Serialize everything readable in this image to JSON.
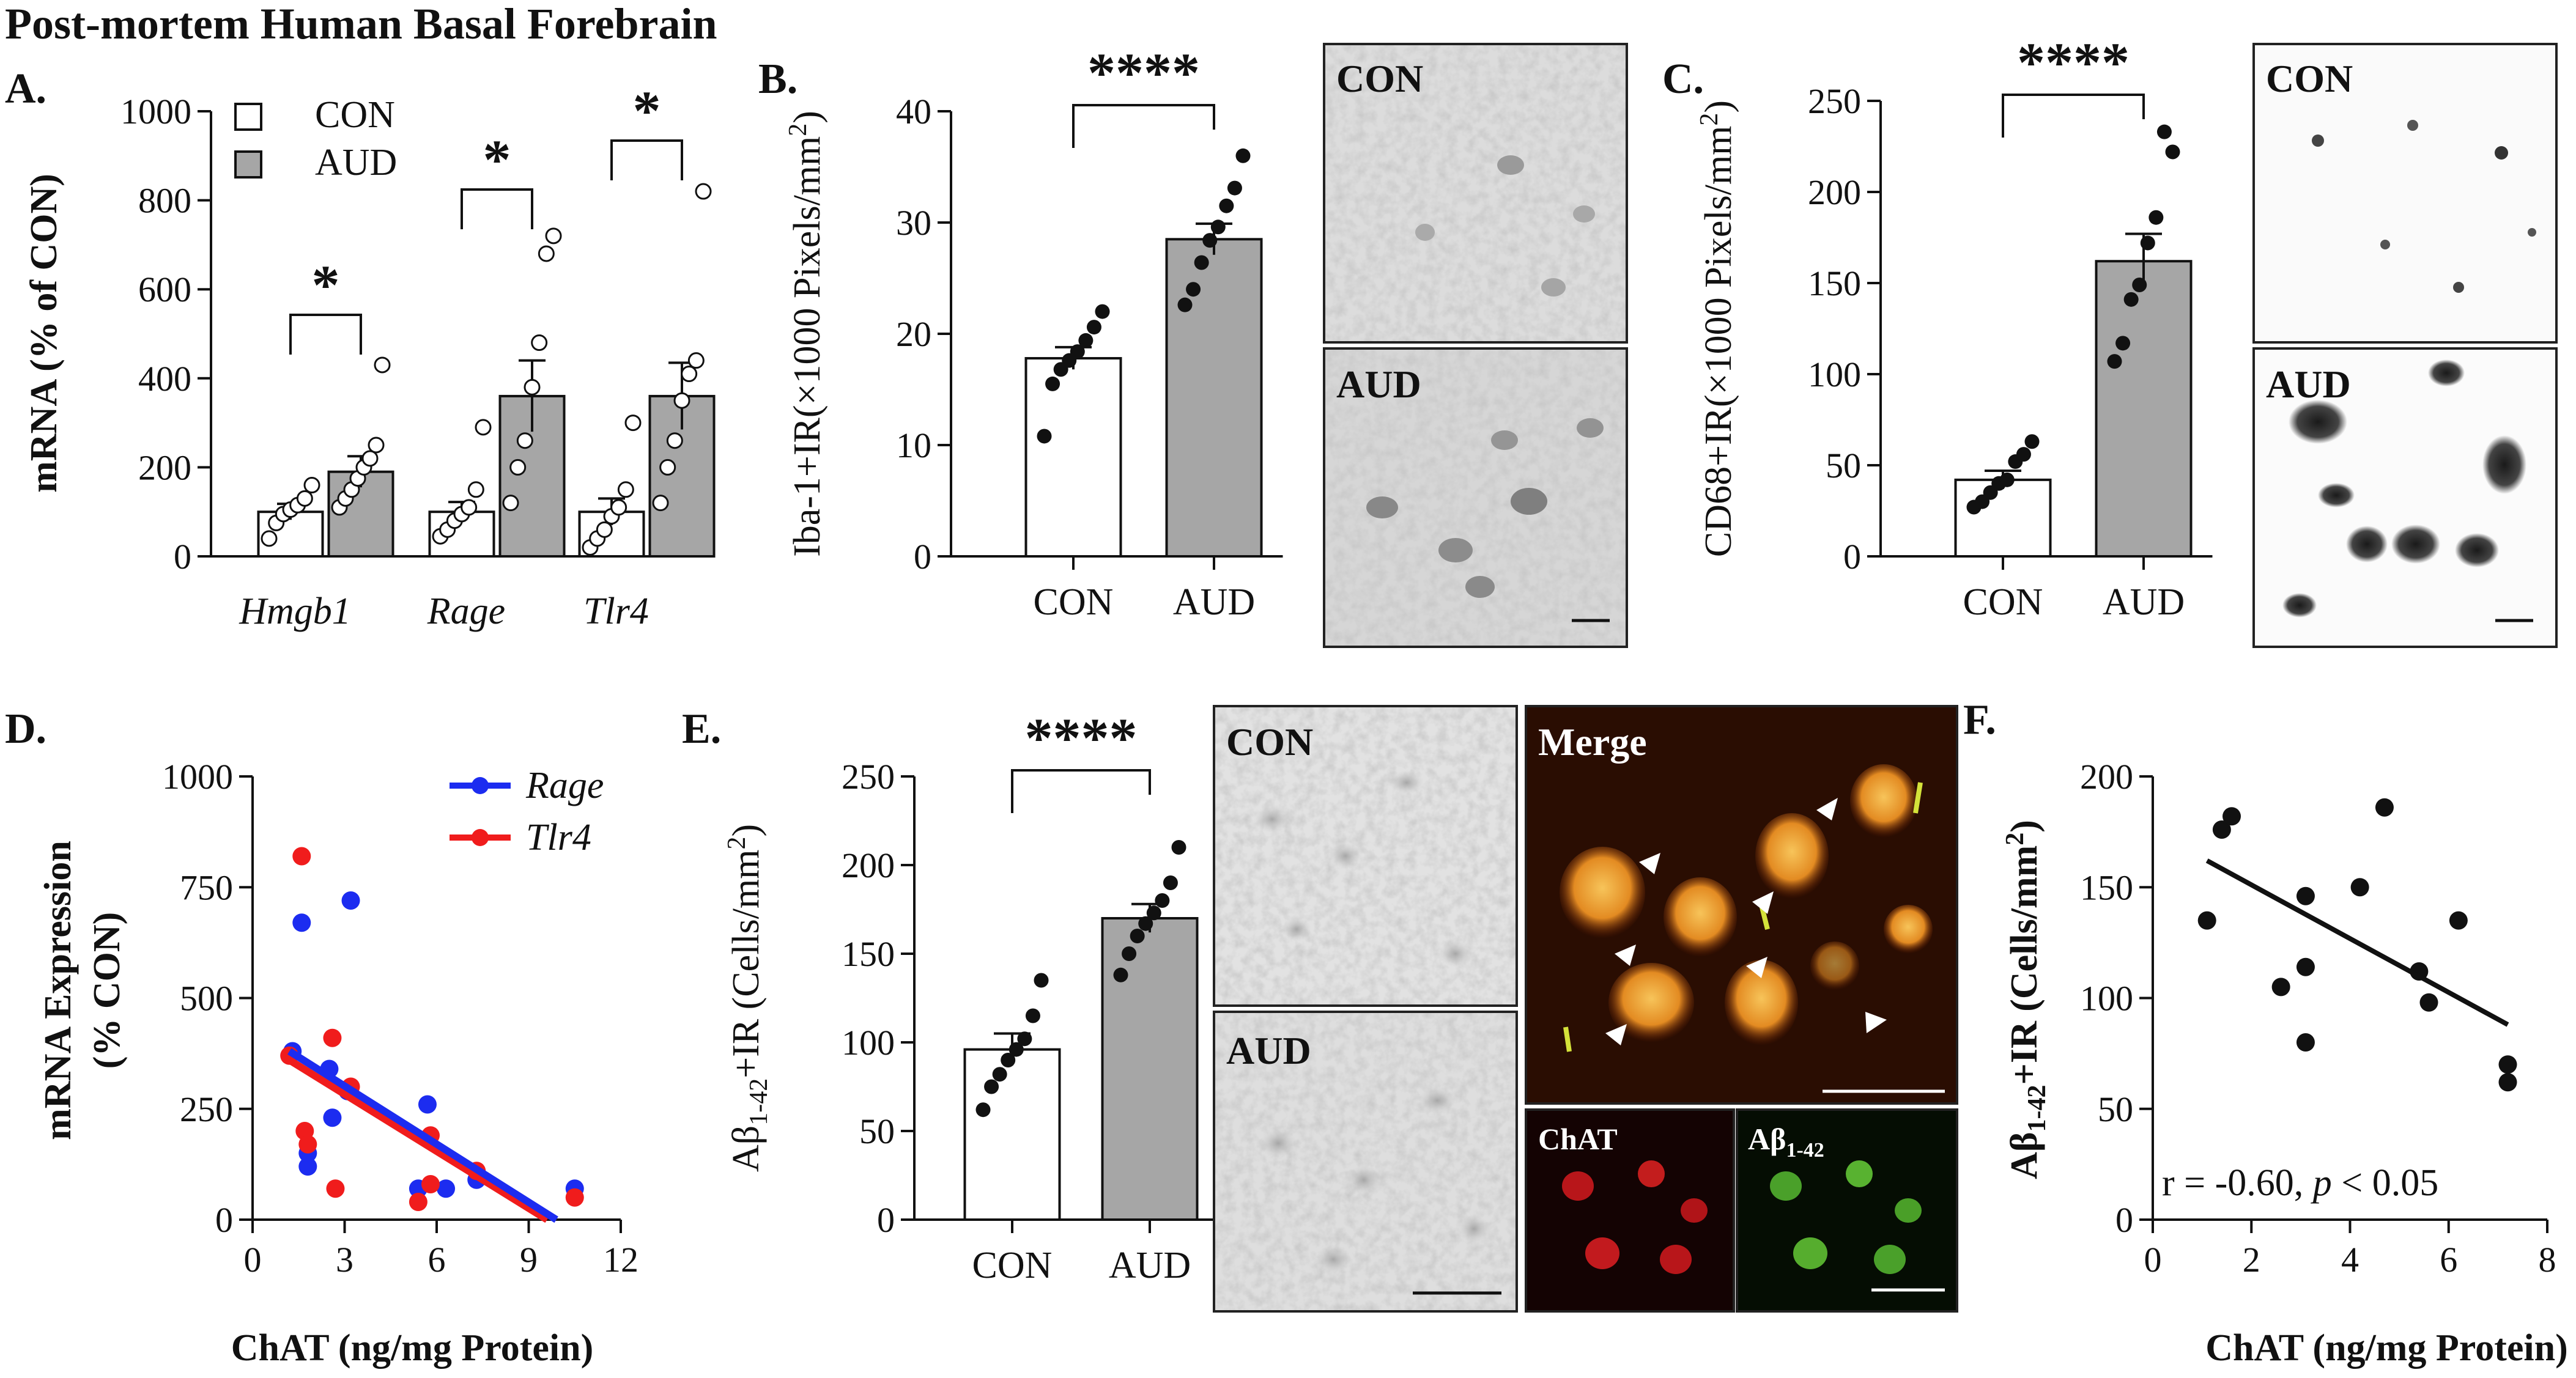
{
  "figure_title": "Post-mortem Human Basal Forebrain",
  "colors": {
    "con_bar": "#ffffff",
    "aud_bar": "#a6a6a6",
    "rage": "#1c2cf0",
    "tlr4": "#f01c1c"
  },
  "panels": {
    "A": {
      "label": "A.",
      "sig": [
        "*",
        "*",
        "*"
      ]
    },
    "B": {
      "label": "B.",
      "sig": "****",
      "img_con": "CON",
      "img_aud": "AUD"
    },
    "C": {
      "label": "C.",
      "sig": "****",
      "img_con": "CON",
      "img_aud": "AUD"
    },
    "D": {
      "label": "D."
    },
    "E": {
      "label": "E.",
      "sig": "****",
      "img_con": "CON",
      "img_aud": "AUD",
      "img_merge": "Merge",
      "img_chat": "ChAT",
      "img_abeta": "Aβ",
      "img_abeta_sub": "1-42"
    },
    "F": {
      "label": "F.",
      "stat_prefix": "r = -0.60, ",
      "stat_p": "p",
      "stat_suffix": " < 0.05"
    }
  },
  "chart_data": [
    {
      "id": "A",
      "type": "bar",
      "categories": [
        "Hmgb1",
        "Rage",
        "Tlr4"
      ],
      "ylabel": "mRNA (% of CON)",
      "ylim": [
        0,
        1000
      ],
      "yticks": [
        "0",
        "200",
        "400",
        "600",
        "800",
        "1000"
      ],
      "legend": [
        "CON",
        "AUD"
      ],
      "legend_position": "top-left",
      "series": [
        {
          "name": "CON",
          "values": [
            100,
            100,
            100
          ],
          "sem": [
            18,
            22,
            30
          ],
          "points": [
            [
              40,
              75,
              95,
              105,
              115,
              130,
              160
            ],
            [
              45,
              60,
              80,
              95,
              110,
              150,
              290
            ],
            [
              20,
              40,
              60,
              90,
              110,
              150,
              300
            ]
          ]
        },
        {
          "name": "AUD",
          "values": [
            190,
            360,
            360
          ],
          "sem": [
            35,
            80,
            75
          ],
          "points": [
            [
              110,
              130,
              150,
              175,
              200,
              220,
              250,
              430
            ],
            [
              120,
              200,
              260,
              380,
              480,
              680,
              720
            ],
            [
              120,
              200,
              260,
              350,
              410,
              440,
              820
            ]
          ]
        }
      ]
    },
    {
      "id": "B",
      "type": "bar",
      "categories": [
        "CON",
        "AUD"
      ],
      "ylabel": [
        "Iba-1+IR",
        "(×1000 Pixels/mm",
        "2",
        ")"
      ],
      "ylim": [
        0,
        40
      ],
      "yticks": [
        "0",
        "10",
        "20",
        "30",
        "40"
      ],
      "values": [
        17.8,
        28.5
      ],
      "sem": [
        1.0,
        1.4
      ],
      "points": [
        [
          10.8,
          15.5,
          16.8,
          17.6,
          18.4,
          19.4,
          20.6,
          22.0
        ],
        [
          22.6,
          24.0,
          26.4,
          28.4,
          29.6,
          31.5,
          33.1,
          36.0
        ]
      ]
    },
    {
      "id": "C",
      "type": "bar",
      "categories": [
        "CON",
        "AUD"
      ],
      "ylabel": [
        "CD68+IR",
        "(×1000 Pixels/mm",
        "2",
        ")"
      ],
      "ylim": [
        0,
        250
      ],
      "yticks": [
        "0",
        "50",
        "100",
        "150",
        "200",
        "250"
      ],
      "values": [
        42,
        162
      ],
      "sem": [
        5,
        15
      ],
      "points": [
        [
          27,
          30,
          35,
          40,
          42,
          52,
          56,
          63
        ],
        [
          107,
          117,
          141,
          149,
          172,
          186,
          233,
          222
        ]
      ]
    },
    {
      "id": "D",
      "type": "scatter",
      "xlabel": "ChAT (ng/mg Protein)",
      "ylabel": [
        "mRNA Expression",
        "(% CON)"
      ],
      "xlim": [
        0,
        12
      ],
      "ylim": [
        0,
        1000
      ],
      "xticks": [
        "0",
        "3",
        "6",
        "9",
        "12"
      ],
      "yticks": [
        "0",
        "250",
        "500",
        "750",
        "1000"
      ],
      "legend_position": "top-right",
      "series": [
        {
          "name": "Rage",
          "points": [
            [
              1.3,
              380
            ],
            [
              1.6,
              670
            ],
            [
              1.8,
              120
            ],
            [
              1.8,
              150
            ],
            [
              2.5,
              340
            ],
            [
              2.6,
              230
            ],
            [
              3.2,
              720
            ],
            [
              3.1,
              290
            ],
            [
              5.4,
              70
            ],
            [
              5.7,
              260
            ],
            [
              6.3,
              70
            ],
            [
              7.3,
              90
            ],
            [
              10.5,
              70
            ]
          ],
          "fit": [
            [
              1.2,
              380
            ],
            [
              9.9,
              0
            ]
          ]
        },
        {
          "name": "Tlr4",
          "points": [
            [
              1.2,
              370
            ],
            [
              1.6,
              820
            ],
            [
              1.7,
              200
            ],
            [
              1.8,
              170
            ],
            [
              2.6,
              410
            ],
            [
              2.7,
              70
            ],
            [
              3.2,
              300
            ],
            [
              5.4,
              40
            ],
            [
              5.8,
              190
            ],
            [
              5.8,
              80
            ],
            [
              7.3,
              110
            ],
            [
              10.5,
              50
            ]
          ],
          "fit": [
            [
              1.2,
              360
            ],
            [
              9.6,
              0
            ]
          ]
        }
      ]
    },
    {
      "id": "E",
      "type": "bar",
      "categories": [
        "CON",
        "AUD"
      ],
      "ylabel": [
        "Aβ",
        "1-42",
        "+IR (Cells/mm",
        "2",
        ")"
      ],
      "ylim": [
        0,
        250
      ],
      "yticks": [
        "0",
        "50",
        "100",
        "150",
        "200",
        "250"
      ],
      "values": [
        96,
        170
      ],
      "sem": [
        9,
        8
      ],
      "points": [
        [
          62,
          75,
          82,
          90,
          96,
          102,
          115,
          135
        ],
        [
          138,
          150,
          160,
          167,
          173,
          180,
          190,
          210
        ]
      ]
    },
    {
      "id": "F",
      "type": "scatter",
      "xlabel": "ChAT (ng/mg Protein)",
      "ylabel": [
        "Aβ",
        "1-42",
        "+IR (Cells/mm",
        "2",
        ")"
      ],
      "xlim": [
        0,
        8
      ],
      "ylim": [
        0,
        200
      ],
      "xticks": [
        "0",
        "2",
        "4",
        "6",
        "8"
      ],
      "yticks": [
        "0",
        "50",
        "100",
        "150",
        "200"
      ],
      "points": [
        [
          1.1,
          135
        ],
        [
          1.4,
          176
        ],
        [
          1.6,
          182
        ],
        [
          2.6,
          105
        ],
        [
          3.1,
          146
        ],
        [
          3.1,
          114
        ],
        [
          3.1,
          80
        ],
        [
          4.2,
          150
        ],
        [
          4.7,
          186
        ],
        [
          5.4,
          112
        ],
        [
          5.6,
          98
        ],
        [
          6.2,
          135
        ],
        [
          7.2,
          70
        ],
        [
          7.2,
          62
        ]
      ],
      "fit": [
        [
          1.1,
          162
        ],
        [
          7.2,
          88
        ]
      ]
    }
  ]
}
